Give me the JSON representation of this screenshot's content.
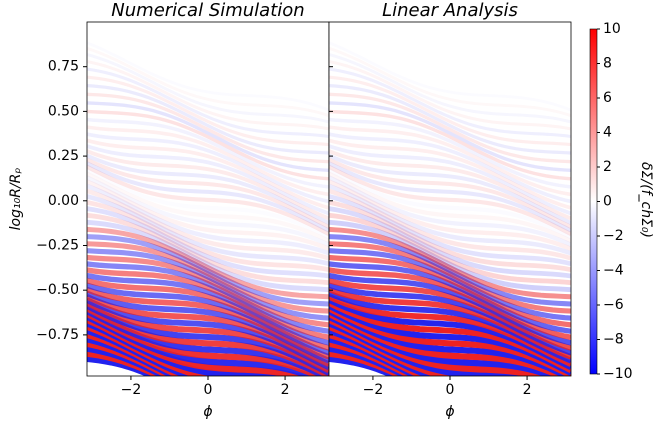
{
  "chart_data": [
    {
      "type": "heatmap",
      "title": "Numerical Simulation",
      "xlabel": "ϕ",
      "ylabel": "log₁₀R/Rₚ",
      "xlim": [
        -3.14,
        3.14
      ],
      "xticks": [
        {
          "value": -2,
          "label": "−2"
        },
        0,
        2
      ],
      "ylim": [
        -0.98,
        1.0
      ],
      "yticks": [
        {
          "value": -0.75,
          "label": "−0.75"
        },
        {
          "value": -0.5,
          "label": "−0.50"
        },
        {
          "value": -0.25,
          "label": "−0.25"
        },
        {
          "value": 0,
          "label": "0.00"
        },
        {
          "value": 0.25,
          "label": "0.25"
        },
        {
          "value": 0.5,
          "label": "0.50"
        },
        {
          "value": 0.75,
          "label": "0.75"
        }
      ]
    },
    {
      "type": "heatmap",
      "title": "Linear Analysis",
      "xlabel": "ϕ",
      "xlim": [
        -3.14,
        3.14
      ],
      "xticks": [
        {
          "value": -2,
          "label": "−2"
        },
        0,
        2
      ],
      "ylim": [
        -0.98,
        1.0
      ]
    }
  ],
  "colorbar": {
    "label": "δΣ/(f_chΣ₀)",
    "colormap": "bwr",
    "clim": [
      -10,
      10
    ],
    "ticks": [
      {
        "value": -10,
        "label": "−10"
      },
      {
        "value": -8,
        "label": "−8"
      },
      {
        "value": -6,
        "label": "−6"
      },
      {
        "value": -4,
        "label": "−4"
      },
      {
        "value": -2,
        "label": "−2"
      },
      0,
      2,
      4,
      6,
      8,
      10
    ]
  }
}
